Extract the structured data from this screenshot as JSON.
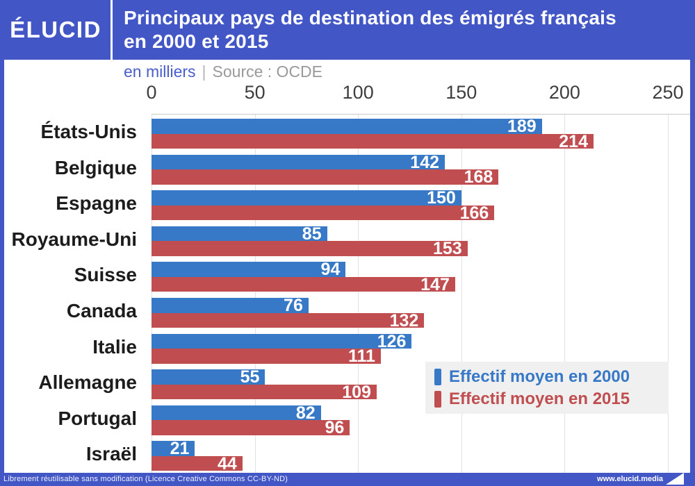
{
  "brand": {
    "logo_text": "ÉLUCID",
    "website": "www.elucid.media"
  },
  "header": {
    "title_line1": "Principaux pays de destination des émigrés français",
    "title_line2": "en 2000 et 2015"
  },
  "subtitle": {
    "unit_label": "en milliers",
    "separator": "|",
    "source_label": "Source : OCDE"
  },
  "chart_data": {
    "type": "bar",
    "orientation": "horizontal",
    "title": "Principaux pays de destination des émigrés français en 2000 et 2015",
    "unit": "milliers",
    "source": "OCDE",
    "categories": [
      "États-Unis",
      "Belgique",
      "Espagne",
      "Royaume-Uni",
      "Suisse",
      "Canada",
      "Italie",
      "Allemagne",
      "Portugal",
      "Israël"
    ],
    "series": [
      {
        "name": "Effectif moyen en 2000",
        "color": "#3879c7",
        "values": [
          189,
          142,
          150,
          85,
          94,
          76,
          126,
          55,
          82,
          21
        ]
      },
      {
        "name": "Effectif moyen en 2015",
        "color": "#c04d4f",
        "values": [
          214,
          168,
          166,
          153,
          147,
          132,
          111,
          109,
          96,
          44
        ]
      }
    ],
    "x_ticks": [
      0,
      50,
      100,
      150,
      200,
      250
    ],
    "xlim": [
      0,
      250
    ],
    "grid": "vertical-only",
    "legend_position": "bottom-right",
    "value_labels": "inside-end, white bold"
  },
  "footer": {
    "license_text": "Librement réutilisable sans modification (Licence Creative Commons CC-BY-ND)"
  },
  "colors": {
    "header_blue": "#4257c5",
    "bar_blue": "#3879c7",
    "bar_red": "#c04d4f",
    "legend_bg": "#f0f0f0",
    "grid_line": "#e2e2e2"
  }
}
